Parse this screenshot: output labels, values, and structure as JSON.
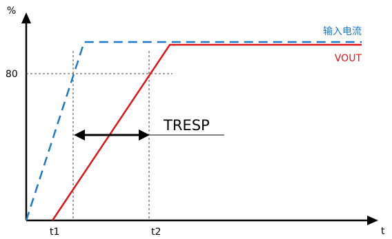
{
  "y_axis_label": "%",
  "x_axis_label": "t",
  "y_tick": "80",
  "x_ticks": [
    "t1",
    "t2"
  ],
  "legend": {
    "input_current": "输入电流",
    "vout": "VOUT"
  },
  "annotation": "TRESP",
  "colors": {
    "input_current": "#1f77c8",
    "vout": "#e3121a",
    "axis": "#000000",
    "guide": "#444444"
  }
}
